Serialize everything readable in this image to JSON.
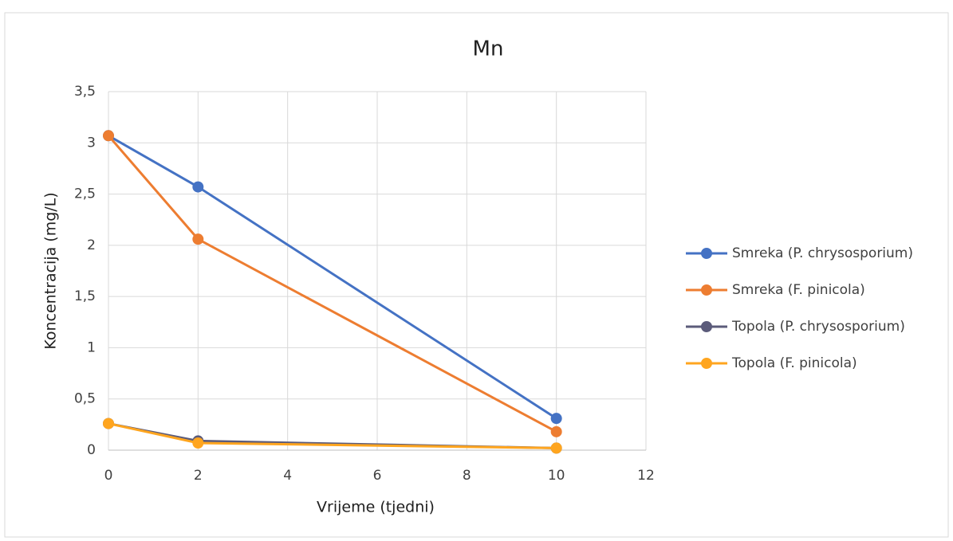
{
  "chart_data": {
    "type": "line",
    "title": "Mn",
    "x_label": "Vrijeme (tjedni)",
    "y_label": "Koncentracija (mg/L)",
    "x": [
      0,
      2,
      10
    ],
    "series": [
      {
        "name": "Smreka (P. chrysosporium)",
        "color": "#4472c4",
        "values": [
          3.07,
          2.57,
          0.31
        ]
      },
      {
        "name": "Smreka (F. pinicola)",
        "color": "#ed7d31",
        "values": [
          3.07,
          2.06,
          0.18
        ]
      },
      {
        "name": "Topola (P. chrysosporium)",
        "color": "#5b5b7a",
        "values": [
          0.26,
          0.09,
          0.02
        ]
      },
      {
        "name": "Topola (F. pinicola)",
        "color": "#ffa51f",
        "values": [
          0.26,
          0.07,
          0.02
        ]
      }
    ],
    "xlim": [
      0,
      12
    ],
    "xticks": [
      0,
      2,
      4,
      6,
      8,
      10,
      12
    ],
    "ylim": [
      0,
      3.5
    ],
    "yticks": [
      0,
      {
        "value": 0.5,
        "label": "0,5"
      },
      1,
      {
        "value": 1.5,
        "label": "1,5"
      },
      2,
      {
        "value": 2.5,
        "label": "2,5"
      },
      3,
      {
        "value": 3.5,
        "label": "3,5"
      }
    ],
    "grid": true,
    "legend": "right"
  }
}
